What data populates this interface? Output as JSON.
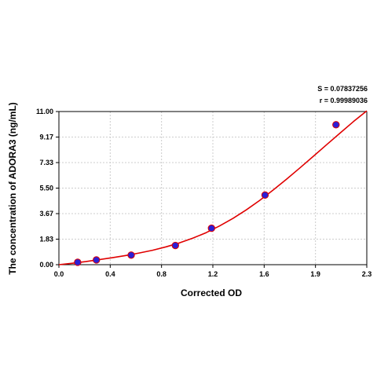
{
  "chart_data": {
    "type": "scatter",
    "xlabel": "Corrected OD",
    "ylabel": "The concentration of ADORA3 (ng/mL)",
    "xlim": [
      0.0,
      2.3
    ],
    "ylim": [
      0.0,
      11.0
    ],
    "x_tick_labels": [
      "0.0",
      "0.4",
      "0.8",
      "1.2",
      "1.6",
      "1.9",
      "2.3"
    ],
    "y_tick_labels": [
      "0.00",
      "1.83",
      "3.67",
      "5.50",
      "7.33",
      "9.17",
      "11.00"
    ],
    "grid": true,
    "annotations": [
      "S = 0.07837256",
      "r = 0.99989036"
    ],
    "series": [
      {
        "type": "scatter",
        "color": "#2b1fd6",
        "x": [
          0.14,
          0.28,
          0.54,
          0.87,
          1.14,
          1.54,
          2.07
        ],
        "y": [
          0.17,
          0.34,
          0.69,
          1.38,
          2.62,
          5.0,
          10.05
        ]
      },
      {
        "type": "line",
        "color": "#e00000",
        "x": [
          0.0,
          0.1,
          0.2,
          0.3,
          0.4,
          0.5,
          0.6,
          0.7,
          0.8,
          0.9,
          1.0,
          1.1,
          1.2,
          1.3,
          1.4,
          1.5,
          1.6,
          1.7,
          1.8,
          1.9,
          2.0,
          2.1,
          2.2,
          2.3
        ],
        "y": [
          0.0,
          0.1,
          0.22,
          0.36,
          0.5,
          0.66,
          0.84,
          1.04,
          1.28,
          1.56,
          1.9,
          2.3,
          2.78,
          3.32,
          3.94,
          4.62,
          5.36,
          6.14,
          6.95,
          7.78,
          8.62,
          9.45,
          10.28,
          11.05
        ]
      }
    ]
  }
}
